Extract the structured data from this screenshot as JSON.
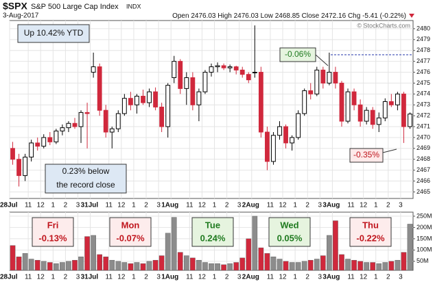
{
  "header": {
    "symbol": "$SPX",
    "name": "S&P 500 Large Cap Index",
    "exchange": "INDX",
    "date": "3-Aug-2017",
    "quote": [
      {
        "label": "Open",
        "value": "2476.03"
      },
      {
        "label": "High",
        "value": "2476.03"
      },
      {
        "label": "Low",
        "value": "2468.85"
      },
      {
        "label": "Close",
        "value": "2472.16"
      },
      {
        "label": "Chg",
        "value": "-5.41 (-0.22%)"
      }
    ],
    "watermark": "© StockCharts.com"
  },
  "chart_data": [
    {
      "type": "candlestick",
      "up_color": "#000000",
      "down_color": "#d0283c",
      "grid": true,
      "x": [
        0.25,
        0.75,
        1.25,
        1.75,
        2.25,
        2.75,
        3.25,
        3.75,
        4.25,
        4.75,
        5.25,
        5.75,
        6.25,
        6.75,
        7.25,
        7.75,
        8.25,
        8.75,
        9.25,
        9.75,
        10.25,
        10.75,
        11.25,
        11.75,
        12.25,
        12.75,
        13.25,
        13.75,
        14.25,
        14.75,
        15.25,
        15.75,
        16.25,
        16.75,
        17.25,
        17.75,
        18.25,
        18.75,
        19.25,
        19.75,
        20.25,
        20.75,
        21.25,
        21.75,
        22.25,
        22.75,
        23.25,
        23.75,
        24.25,
        24.75,
        25.25,
        25.75,
        26.25,
        26.75,
        27.25,
        27.75,
        28.25,
        28.75,
        29.25,
        29.75,
        30.25,
        30.75,
        31.25,
        31.75,
        32.25
      ],
      "open": [
        2469.0,
        2468.0,
        2466.5,
        2468.2,
        2469.5,
        2469.2,
        2470.0,
        2469.6,
        2470.6,
        2470.9,
        2471.3,
        2471.0,
        2472.3,
        2476.0,
        2476.5,
        2472.5,
        2470.5,
        2470.8,
        2472.2,
        2473.6,
        2473.0,
        2473.8,
        2473.2,
        2474.2,
        2472.8,
        2471.0,
        2475.5,
        2477.0,
        2474.5,
        2475.5,
        2473.0,
        2474.2,
        2476.0,
        2476.5,
        2476.6,
        2476.4,
        2476.5,
        2476.2,
        2475.8,
        2476.0,
        2476.0,
        2470.5,
        2467.8,
        2470.2,
        2471.0,
        2469.5,
        2470.0,
        2472.2,
        2474.3,
        2474.0,
        2476.2,
        2475.0,
        2476.0,
        2475.0,
        2471.5,
        2474.2,
        2473.0,
        2471.5,
        2472.5,
        2471.2,
        2471.8,
        2473.3,
        2473.0,
        2474.0,
        2471.0
      ],
      "high": [
        2469.6,
        2468.5,
        2468.5,
        2469.8,
        2470.0,
        2470.3,
        2470.5,
        2470.8,
        2471.2,
        2471.5,
        2471.8,
        2472.5,
        2473.2,
        2477.8,
        2476.8,
        2473.0,
        2471.0,
        2472.5,
        2474.0,
        2474.2,
        2474.0,
        2474.4,
        2474.5,
        2474.6,
        2473.2,
        2475.0,
        2477.5,
        2477.2,
        2476.0,
        2476.0,
        2474.5,
        2476.2,
        2476.8,
        2476.9,
        2476.8,
        2476.7,
        2476.6,
        2476.5,
        2476.0,
        2480.3,
        2476.5,
        2471.0,
        2470.5,
        2471.5,
        2471.2,
        2470.2,
        2472.5,
        2474.5,
        2475.0,
        2476.5,
        2476.5,
        2477.8,
        2476.5,
        2475.2,
        2474.5,
        2474.5,
        2473.5,
        2472.8,
        2472.8,
        2472.3,
        2473.6,
        2474.0,
        2474.2,
        2474.2,
        2472.3
      ],
      "low": [
        2467.5,
        2465.5,
        2466.0,
        2467.8,
        2468.8,
        2469.0,
        2469.3,
        2469.4,
        2470.2,
        2470.5,
        2470.8,
        2469.5,
        2469.0,
        2475.5,
        2472.0,
        2470.0,
        2469.0,
        2470.5,
        2472.0,
        2472.5,
        2472.2,
        2473.0,
        2472.8,
        2472.5,
        2470.5,
        2470.0,
        2475.0,
        2474.0,
        2473.0,
        2472.5,
        2471.5,
        2474.0,
        2475.6,
        2476.0,
        2476.2,
        2476.0,
        2475.8,
        2475.5,
        2475.0,
        2475.5,
        2470.0,
        2467.0,
        2467.5,
        2469.8,
        2469.0,
        2468.8,
        2469.8,
        2472.0,
        2473.5,
        2473.8,
        2474.5,
        2474.8,
        2474.5,
        2471.0,
        2471.3,
        2472.5,
        2471.0,
        2471.2,
        2470.8,
        2470.5,
        2471.5,
        2472.8,
        2472.5,
        2469.5,
        2470.8
      ],
      "close": [
        2468.0,
        2466.5,
        2468.2,
        2469.5,
        2469.2,
        2470.0,
        2469.6,
        2470.6,
        2470.9,
        2471.3,
        2471.0,
        2472.3,
        2472.2,
        2476.5,
        2472.5,
        2470.5,
        2470.8,
        2472.2,
        2473.6,
        2473.0,
        2473.8,
        2473.2,
        2474.2,
        2472.8,
        2471.0,
        2474.8,
        2477.0,
        2474.5,
        2475.5,
        2473.0,
        2474.2,
        2476.0,
        2476.5,
        2476.6,
        2476.4,
        2476.5,
        2476.2,
        2475.8,
        2475.3,
        2476.0,
        2470.5,
        2467.8,
        2470.2,
        2471.0,
        2469.5,
        2470.0,
        2472.2,
        2474.3,
        2474.0,
        2476.2,
        2475.0,
        2476.0,
        2475.0,
        2471.5,
        2474.2,
        2473.0,
        2471.5,
        2472.5,
        2471.2,
        2471.8,
        2473.3,
        2473.0,
        2474.0,
        2471.0,
        2472.16
      ],
      "xlim": [
        0,
        32.5
      ],
      "ylim": [
        2464.4,
        2480.75
      ],
      "yticks": [
        2465,
        2466,
        2467,
        2468,
        2469,
        2470,
        2471,
        2472,
        2473,
        2474,
        2475,
        2476,
        2477,
        2478,
        2479,
        2480
      ],
      "xticks": [
        {
          "value": 0,
          "label": "28Jul"
        },
        {
          "value": 1.5,
          "label": "11"
        },
        {
          "value": 2.5,
          "label": "12"
        },
        {
          "value": 3.5,
          "label": "1"
        },
        {
          "value": 4.5,
          "label": "2"
        },
        {
          "value": 5.5,
          "label": "3"
        },
        {
          "value": 6.5,
          "label": "31Jul"
        },
        {
          "value": 8,
          "label": "11"
        },
        {
          "value": 9,
          "label": "12"
        },
        {
          "value": 10,
          "label": "1"
        },
        {
          "value": 11,
          "label": "2"
        },
        {
          "value": 12,
          "label": "3"
        },
        {
          "value": 13,
          "label": "1Aug"
        },
        {
          "value": 14.5,
          "label": "11"
        },
        {
          "value": 15.5,
          "label": "12"
        },
        {
          "value": 16.5,
          "label": "1"
        },
        {
          "value": 17.5,
          "label": "2"
        },
        {
          "value": 18.5,
          "label": "3"
        },
        {
          "value": 19.5,
          "label": "2Aug"
        },
        {
          "value": 21,
          "label": "11"
        },
        {
          "value": 22,
          "label": "12"
        },
        {
          "value": 23,
          "label": "1"
        },
        {
          "value": 24,
          "label": "2"
        },
        {
          "value": 25,
          "label": "3"
        },
        {
          "value": 26,
          "label": "3Aug"
        },
        {
          "value": 27.5,
          "label": "11"
        },
        {
          "value": 28.5,
          "label": "12"
        },
        {
          "value": 29.5,
          "label": "1"
        },
        {
          "value": 30.5,
          "label": "2"
        },
        {
          "value": 31.5,
          "label": "3"
        }
      ],
      "annotations": [
        "Up 10.42% YTD",
        "0.23% below",
        "the record close",
        "-0.06%",
        "-0.35%"
      ]
    },
    {
      "type": "bar",
      "up_color": "#8c8c8c",
      "down_color": "#d0283c",
      "grid": true,
      "x": [
        0.25,
        0.75,
        1.25,
        1.75,
        2.25,
        2.75,
        3.25,
        3.75,
        4.25,
        4.75,
        5.25,
        5.75,
        6.25,
        6.75,
        7.25,
        7.75,
        8.25,
        8.75,
        9.25,
        9.75,
        10.25,
        10.75,
        11.25,
        11.75,
        12.25,
        12.75,
        13.25,
        13.75,
        14.25,
        14.75,
        15.25,
        15.75,
        16.25,
        16.75,
        17.25,
        17.75,
        18.25,
        18.75,
        19.25,
        19.75,
        20.25,
        20.75,
        21.25,
        21.75,
        22.25,
        22.75,
        23.25,
        23.75,
        24.25,
        24.75,
        25.25,
        25.75,
        26.25,
        26.75,
        27.25,
        27.75,
        28.25,
        28.75,
        29.25,
        29.75,
        30.25,
        30.75,
        31.25,
        31.75,
        32.25
      ],
      "values": [
        120,
        70,
        85,
        60,
        55,
        50,
        45,
        40,
        45,
        50,
        55,
        70,
        160,
        165,
        80,
        70,
        55,
        50,
        45,
        40,
        45,
        40,
        50,
        55,
        75,
        175,
        245,
        90,
        75,
        65,
        55,
        45,
        40,
        40,
        35,
        40,
        45,
        65,
        150,
        250,
        110,
        85,
        70,
        60,
        50,
        45,
        45,
        50,
        55,
        60,
        75,
        165,
        230,
        80,
        60,
        55,
        50,
        45,
        45,
        40,
        45,
        50,
        55,
        90,
        215
      ],
      "xlim": [
        0,
        32.5
      ],
      "ylim": [
        10,
        268
      ],
      "yticks": [
        {
          "value": 50,
          "label": "50M"
        },
        {
          "value": 100,
          "label": "100M"
        },
        {
          "value": 150,
          "label": "150M"
        },
        {
          "value": 200,
          "label": "200M"
        },
        {
          "value": 250,
          "label": "250M"
        }
      ],
      "xticks": [
        {
          "value": 0,
          "label": "28Jul"
        },
        {
          "value": 1.5,
          "label": "11"
        },
        {
          "value": 2.5,
          "label": "12"
        },
        {
          "value": 3.5,
          "label": "1"
        },
        {
          "value": 4.5,
          "label": "2"
        },
        {
          "value": 5.5,
          "label": "3"
        },
        {
          "value": 6.5,
          "label": "31Jul"
        },
        {
          "value": 8,
          "label": "11"
        },
        {
          "value": 9,
          "label": "12"
        },
        {
          "value": 10,
          "label": "1"
        },
        {
          "value": 11,
          "label": "2"
        },
        {
          "value": 12,
          "label": "3"
        },
        {
          "value": 13,
          "label": "1Aug"
        },
        {
          "value": 14.5,
          "label": "11"
        },
        {
          "value": 15.5,
          "label": "12"
        },
        {
          "value": 16.5,
          "label": "1"
        },
        {
          "value": 17.5,
          "label": "2"
        },
        {
          "value": 18.5,
          "label": "3"
        },
        {
          "value": 19.5,
          "label": "2Aug"
        },
        {
          "value": 21,
          "label": "11"
        },
        {
          "value": 22,
          "label": "12"
        },
        {
          "value": 23,
          "label": "1"
        },
        {
          "value": 24,
          "label": "2"
        },
        {
          "value": 25,
          "label": "3"
        },
        {
          "value": 26,
          "label": "3Aug"
        },
        {
          "value": 27.5,
          "label": "11"
        },
        {
          "value": 28.5,
          "label": "12"
        },
        {
          "value": 29.5,
          "label": "1"
        },
        {
          "value": 30.5,
          "label": "2"
        },
        {
          "value": 31.5,
          "label": "3"
        }
      ],
      "annotations": [
        {
          "day": "Fri",
          "change": "-0.13%"
        },
        {
          "day": "Mon",
          "change": "-0.07%"
        },
        {
          "day": "Tue",
          "change": "0.24%"
        },
        {
          "day": "Wed",
          "change": "0.05%"
        },
        {
          "day": "Thu",
          "change": "-0.22%"
        }
      ]
    }
  ]
}
